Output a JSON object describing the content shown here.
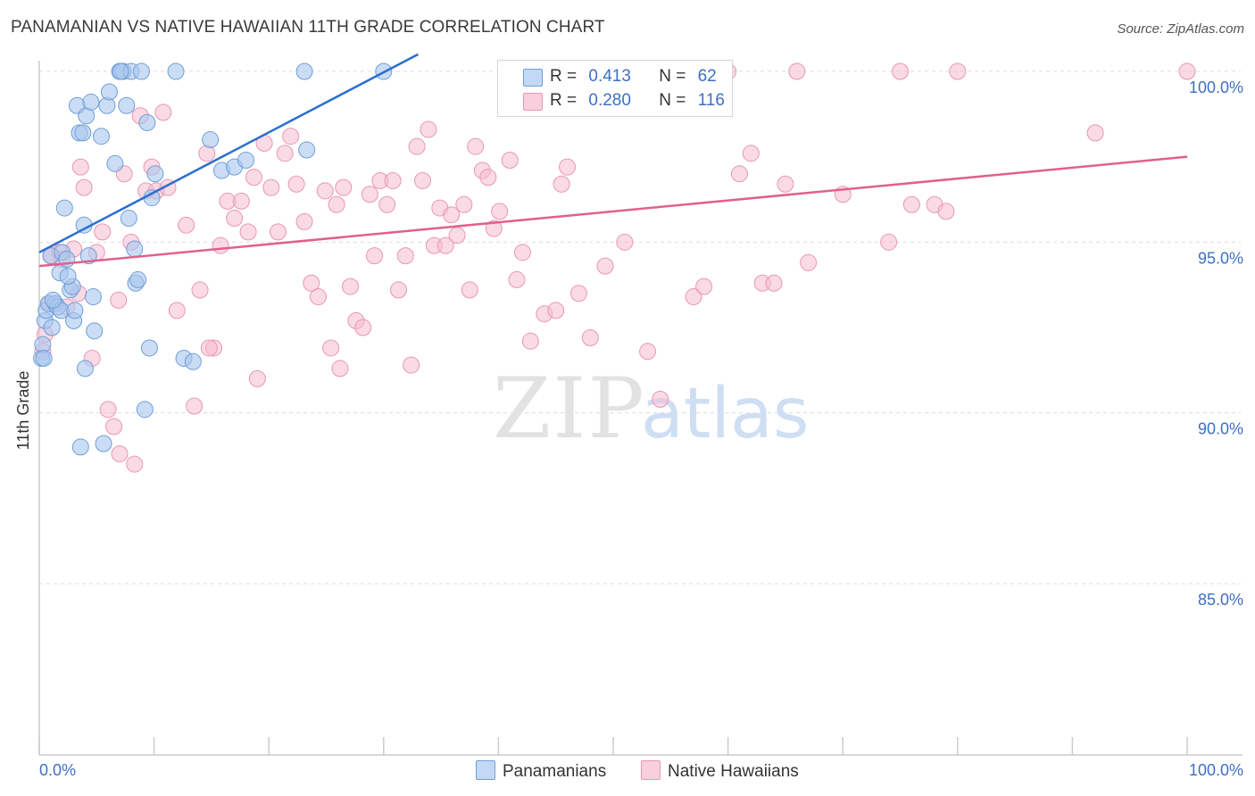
{
  "title": "PANAMANIAN VS NATIVE HAWAIIAN 11TH GRADE CORRELATION CHART",
  "source": "Source: ZipAtlas.com",
  "watermark": {
    "zip": "ZIP",
    "atlas": "atlas"
  },
  "colors": {
    "blue_fill": "#a8c6ee",
    "blue_stroke": "#6f9fd8",
    "blue_line": "#2b6fcf",
    "pink_fill": "#f6bcd0",
    "pink_stroke": "#e897b3",
    "pink_line": "#e0608c",
    "axis_label": "#3f6fc4",
    "grid": "#dddddd"
  },
  "legend": {
    "rows": [
      {
        "r_label": "R =",
        "r_value": "0.413",
        "n_label": "N =",
        "n_value": "62"
      },
      {
        "r_label": "R =",
        "r_value": "0.280",
        "n_label": "N =",
        "n_value": "116"
      }
    ]
  },
  "bottom_legend": {
    "series1": "Panamanians",
    "series2": "Native Hawaiians"
  },
  "chart_data": {
    "type": "scatter",
    "title": "PANAMANIAN VS NATIVE HAWAIIAN 11TH GRADE CORRELATION CHART",
    "xlabel": "",
    "ylabel": "11th Grade",
    "xlim": [
      0,
      100
    ],
    "ylim": [
      80.5,
      100.9
    ],
    "x_tick_labels": [
      "0.0%",
      "100.0%"
    ],
    "y_ticks": [
      85.0,
      90.0,
      95.0,
      100.0
    ],
    "y_tick_labels": [
      "85.0%",
      "90.0%",
      "95.0%",
      "100.0%"
    ],
    "grid": true,
    "series": [
      {
        "name": "Panamanians",
        "r": 0.413,
        "n": 62,
        "trend": {
          "x0": 0.0,
          "y0": 94.7,
          "x1": 33.0,
          "y1": 100.5
        },
        "points": [
          [
            0.2,
            91.6
          ],
          [
            0.3,
            92.0
          ],
          [
            0.5,
            92.7
          ],
          [
            0.6,
            93.0
          ],
          [
            0.8,
            93.2
          ],
          [
            1.0,
            94.6
          ],
          [
            1.1,
            92.5
          ],
          [
            1.4,
            93.2
          ],
          [
            1.6,
            93.1
          ],
          [
            1.8,
            94.1
          ],
          [
            1.9,
            93.0
          ],
          [
            2.0,
            94.7
          ],
          [
            2.2,
            96.0
          ],
          [
            2.4,
            94.5
          ],
          [
            2.7,
            93.6
          ],
          [
            2.9,
            93.7
          ],
          [
            3.0,
            92.7
          ],
          [
            3.3,
            99.0
          ],
          [
            3.5,
            98.2
          ],
          [
            3.6,
            89.0
          ],
          [
            3.8,
            98.2
          ],
          [
            3.9,
            95.5
          ],
          [
            4.0,
            91.3
          ],
          [
            4.1,
            98.7
          ],
          [
            4.3,
            94.6
          ],
          [
            4.5,
            99.1
          ],
          [
            4.7,
            93.4
          ],
          [
            4.8,
            92.4
          ],
          [
            5.4,
            98.1
          ],
          [
            5.6,
            89.1
          ],
          [
            5.9,
            99.0
          ],
          [
            6.1,
            99.4
          ],
          [
            6.6,
            97.3
          ],
          [
            7.0,
            100.0
          ],
          [
            7.3,
            100.0
          ],
          [
            7.6,
            99.0
          ],
          [
            7.8,
            95.7
          ],
          [
            8.0,
            100.0
          ],
          [
            8.3,
            94.8
          ],
          [
            8.4,
            93.8
          ],
          [
            8.6,
            93.9
          ],
          [
            8.9,
            100.0
          ],
          [
            9.2,
            90.1
          ],
          [
            9.4,
            98.5
          ],
          [
            9.6,
            91.9
          ],
          [
            9.8,
            96.3
          ],
          [
            10.1,
            97.0
          ],
          [
            11.9,
            100.0
          ],
          [
            12.6,
            91.6
          ],
          [
            13.4,
            91.5
          ],
          [
            14.9,
            98.0
          ],
          [
            15.9,
            97.1
          ],
          [
            17.0,
            97.2
          ],
          [
            18.0,
            97.4
          ],
          [
            23.1,
            100.0
          ],
          [
            23.3,
            97.7
          ],
          [
            30.0,
            100.0
          ],
          [
            0.4,
            91.6
          ],
          [
            1.2,
            93.3
          ],
          [
            2.5,
            94.0
          ],
          [
            3.1,
            93.0
          ],
          [
            7.1,
            100.0
          ]
        ]
      },
      {
        "name": "Native Hawaiians",
        "r": 0.28,
        "n": 116,
        "trend": {
          "x0": 0.0,
          "y0": 94.3,
          "x1": 100.0,
          "y1": 97.5
        },
        "points": [
          [
            0.3,
            91.8
          ],
          [
            0.5,
            92.3
          ],
          [
            0.9,
            93.2
          ],
          [
            1.1,
            94.6
          ],
          [
            1.4,
            93.2
          ],
          [
            2.0,
            94.5
          ],
          [
            2.4,
            93.1
          ],
          [
            3.0,
            94.8
          ],
          [
            3.4,
            93.5
          ],
          [
            3.6,
            97.2
          ],
          [
            3.9,
            96.6
          ],
          [
            4.6,
            91.6
          ],
          [
            5.0,
            94.7
          ],
          [
            5.5,
            95.3
          ],
          [
            6.0,
            90.1
          ],
          [
            6.5,
            89.6
          ],
          [
            7.0,
            88.8
          ],
          [
            7.4,
            97.0
          ],
          [
            8.0,
            95.0
          ],
          [
            8.3,
            88.5
          ],
          [
            8.8,
            98.7
          ],
          [
            9.3,
            96.5
          ],
          [
            9.8,
            97.2
          ],
          [
            10.2,
            96.5
          ],
          [
            10.8,
            98.8
          ],
          [
            11.2,
            96.6
          ],
          [
            12.0,
            93.0
          ],
          [
            12.8,
            95.5
          ],
          [
            13.5,
            90.2
          ],
          [
            14.0,
            93.6
          ],
          [
            14.6,
            97.6
          ],
          [
            15.2,
            91.9
          ],
          [
            15.8,
            94.9
          ],
          [
            16.4,
            96.2
          ],
          [
            17.0,
            95.7
          ],
          [
            17.6,
            96.2
          ],
          [
            18.2,
            95.3
          ],
          [
            18.7,
            96.9
          ],
          [
            19.0,
            91.0
          ],
          [
            19.6,
            97.9
          ],
          [
            20.2,
            96.6
          ],
          [
            20.8,
            95.3
          ],
          [
            21.4,
            97.6
          ],
          [
            21.9,
            98.1
          ],
          [
            22.4,
            96.7
          ],
          [
            23.1,
            95.6
          ],
          [
            23.7,
            93.8
          ],
          [
            24.3,
            93.4
          ],
          [
            24.9,
            96.5
          ],
          [
            25.4,
            91.9
          ],
          [
            25.9,
            96.1
          ],
          [
            26.5,
            96.6
          ],
          [
            27.1,
            93.7
          ],
          [
            27.6,
            92.7
          ],
          [
            28.2,
            92.5
          ],
          [
            28.8,
            96.4
          ],
          [
            29.2,
            94.6
          ],
          [
            29.7,
            96.8
          ],
          [
            30.3,
            96.1
          ],
          [
            30.8,
            96.8
          ],
          [
            31.3,
            93.6
          ],
          [
            31.9,
            94.6
          ],
          [
            32.4,
            91.4
          ],
          [
            32.9,
            97.8
          ],
          [
            33.4,
            96.8
          ],
          [
            33.9,
            98.3
          ],
          [
            34.4,
            94.9
          ],
          [
            34.9,
            96.0
          ],
          [
            35.4,
            94.9
          ],
          [
            35.9,
            95.8
          ],
          [
            36.4,
            95.2
          ],
          [
            37.0,
            96.1
          ],
          [
            37.5,
            93.6
          ],
          [
            38.0,
            97.8
          ],
          [
            38.6,
            97.1
          ],
          [
            39.1,
            96.9
          ],
          [
            39.6,
            95.4
          ],
          [
            40.1,
            95.9
          ],
          [
            41.0,
            97.4
          ],
          [
            41.6,
            93.9
          ],
          [
            42.1,
            94.7
          ],
          [
            42.8,
            92.1
          ],
          [
            44.0,
            92.9
          ],
          [
            45.0,
            93.0
          ],
          [
            45.5,
            96.7
          ],
          [
            46.0,
            97.2
          ],
          [
            47.0,
            93.5
          ],
          [
            48.0,
            92.2
          ],
          [
            49.3,
            94.3
          ],
          [
            51.0,
            95.0
          ],
          [
            53.0,
            91.8
          ],
          [
            54.1,
            90.4
          ],
          [
            55.0,
            100.0
          ],
          [
            57.0,
            93.4
          ],
          [
            57.9,
            93.7
          ],
          [
            60.0,
            100.0
          ],
          [
            61.0,
            97.0
          ],
          [
            62.0,
            97.6
          ],
          [
            63.0,
            93.8
          ],
          [
            64.0,
            93.8
          ],
          [
            65.0,
            96.7
          ],
          [
            67.0,
            94.4
          ],
          [
            70.0,
            96.4
          ],
          [
            74.0,
            95.0
          ],
          [
            76.0,
            96.1
          ],
          [
            78.0,
            96.1
          ],
          [
            79.0,
            95.9
          ],
          [
            80.0,
            100.0
          ],
          [
            92.0,
            98.2
          ],
          [
            100.0,
            100.0
          ],
          [
            75.0,
            100.0
          ],
          [
            66.0,
            100.0
          ],
          [
            44.6,
            100.0
          ],
          [
            47.5,
            100.0
          ],
          [
            59.2,
            100.0
          ],
          [
            1.8,
            94.7
          ],
          [
            6.9,
            93.3
          ],
          [
            14.8,
            91.9
          ],
          [
            26.2,
            91.3
          ]
        ]
      }
    ]
  }
}
